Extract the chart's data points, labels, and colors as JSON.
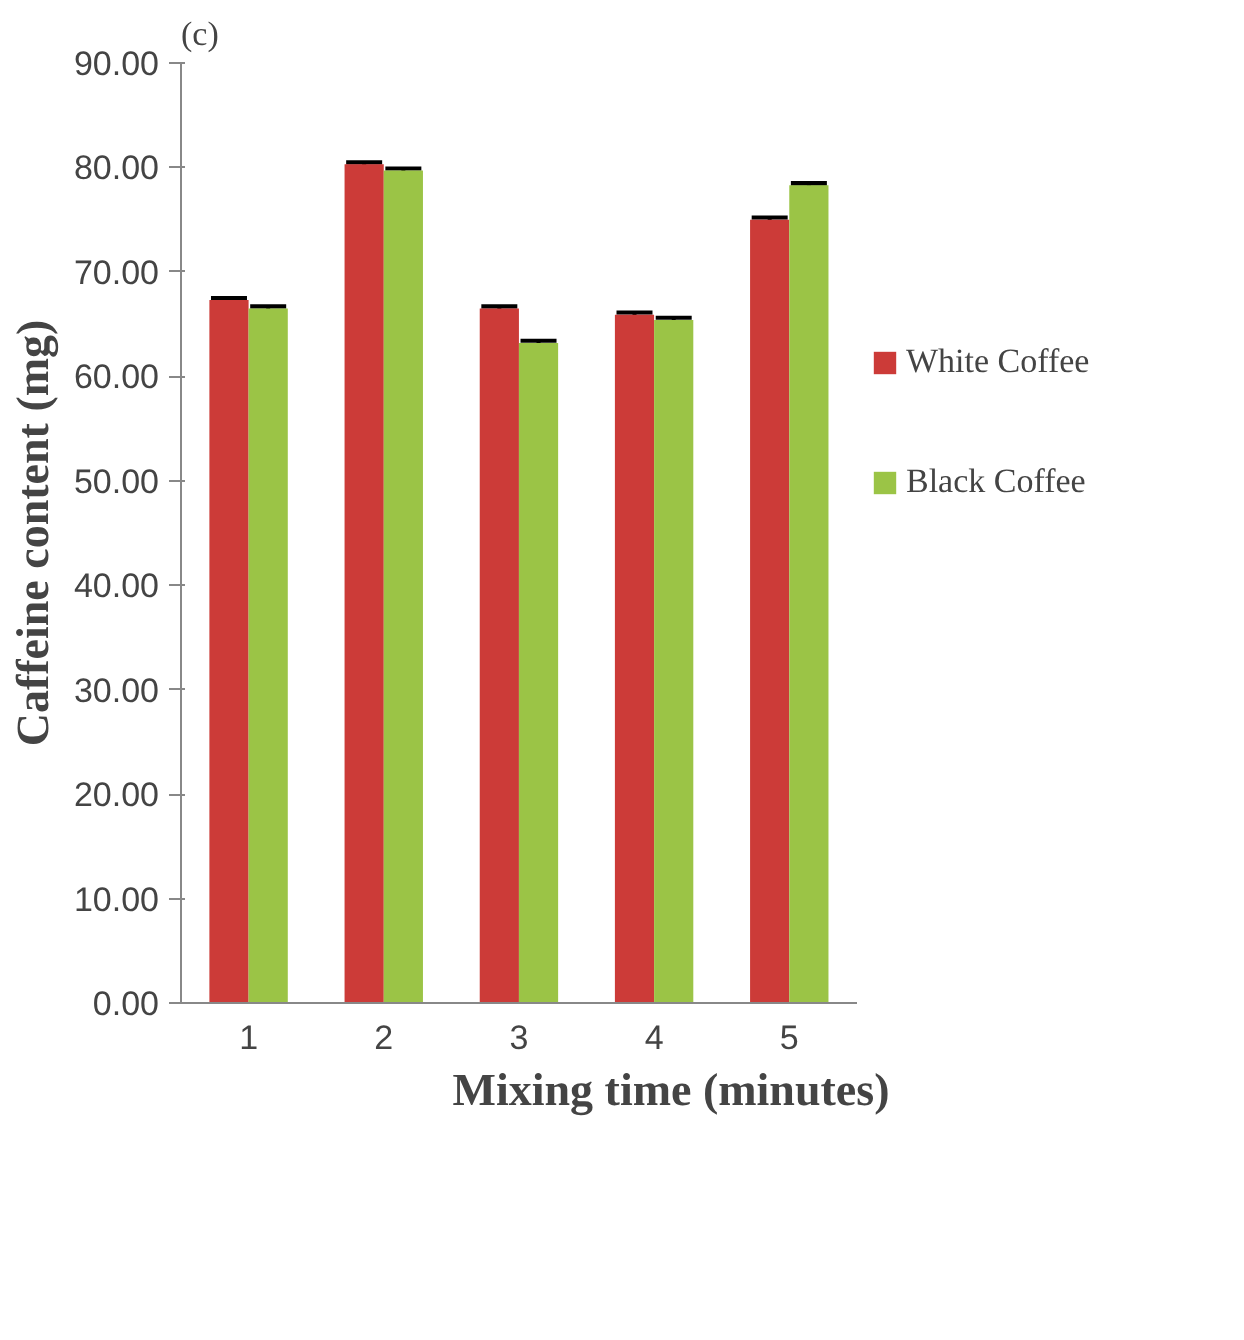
{
  "chart_data": {
    "type": "bar",
    "annotations": [
      "(c)"
    ],
    "xlabel": "Mixing time (minutes)",
    "ylabel": "Caffeine content (mg)",
    "categories": [
      "1",
      "2",
      "3",
      "4",
      "5"
    ],
    "series": [
      {
        "name": "White Coffee",
        "color": "#cc3b38",
        "values": [
          67.3,
          80.3,
          66.5,
          65.9,
          75.0
        ],
        "errors": [
          0.2,
          0.2,
          0.2,
          0.2,
          0.2
        ]
      },
      {
        "name": "Black Coffee",
        "color": "#9bc446",
        "values": [
          66.5,
          79.7,
          63.2,
          65.4,
          78.3
        ],
        "errors": [
          0.2,
          0.2,
          0.2,
          0.2,
          0.2
        ]
      }
    ],
    "ylim": [
      0,
      90
    ],
    "yticks": [
      {
        "value": 0,
        "label": "0.00"
      },
      {
        "value": 10,
        "label": "10.00"
      },
      {
        "value": 20,
        "label": "20.00"
      },
      {
        "value": 30,
        "label": "30.00"
      },
      {
        "value": 40,
        "label": "40.00"
      },
      {
        "value": 50,
        "label": "50.00"
      },
      {
        "value": 60,
        "label": "60.00"
      },
      {
        "value": 70,
        "label": "70.00"
      },
      {
        "value": 80,
        "label": "80.00"
      },
      {
        "value": 90,
        "label": "90.00"
      }
    ],
    "legend": "right",
    "grid": false
  }
}
